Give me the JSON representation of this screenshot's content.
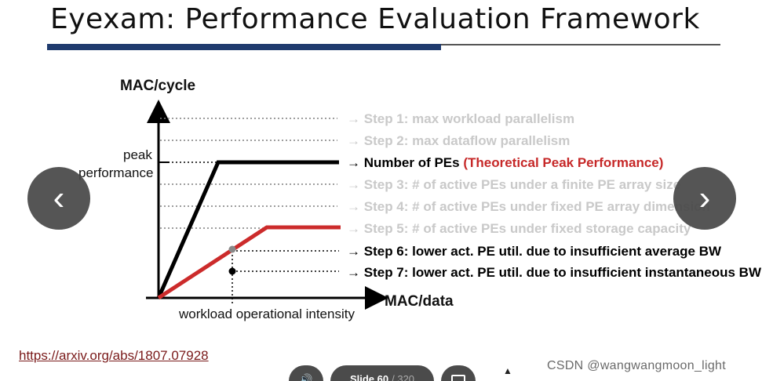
{
  "slide": {
    "title": "Eyexam: Performance Evaluation Framework",
    "link": "https://arxiv.org/abs/1807.07928",
    "watermark": "CSDN @wangwangmoon_light"
  },
  "diagram": {
    "y_axis_label": "MAC/cycle",
    "x_axis_label": "MAC/data",
    "peak_label_line1": "peak",
    "peak_label_line2": "performance",
    "x_marker_label": "workload operational intensity",
    "steps": [
      {
        "text": "Step 1: max workload parallelism",
        "state": "faded"
      },
      {
        "text": "Step 2: max dataflow parallelism",
        "state": "faded"
      },
      {
        "text": "Number of PEs",
        "highlight": "(Theoretical Peak Performance)",
        "state": "active"
      },
      {
        "text": "Step 3: # of active PEs under a finite PE array size",
        "state": "faded"
      },
      {
        "text": "Step 4: # of active PEs under fixed PE array dimension",
        "state": "faded"
      },
      {
        "text": "Step 5: # of active PEs under fixed storage capacity",
        "state": "faded"
      },
      {
        "text": "Step 6: lower act. PE util. due to insufficient average BW",
        "state": "active"
      },
      {
        "text": "Step 7: lower act. PE util. due to insufficient instantaneous BW",
        "state": "active"
      }
    ],
    "colors": {
      "roofline": "#000000",
      "red_roofline": "#cc2b2b",
      "highlight": "#c62828",
      "faded": "#c9c9c9",
      "dotted": "#7f7f7f"
    }
  },
  "player": {
    "prev_icon": "chevron-left-icon",
    "next_icon": "chevron-right-icon",
    "prev_glyph": "‹",
    "next_glyph": "›",
    "audio_icon": "speaker-icon",
    "audio_glyph": "🔊",
    "slide_label": "Slide 60",
    "slide_total": "/ 320",
    "grid_icon": "slides-grid-icon"
  }
}
